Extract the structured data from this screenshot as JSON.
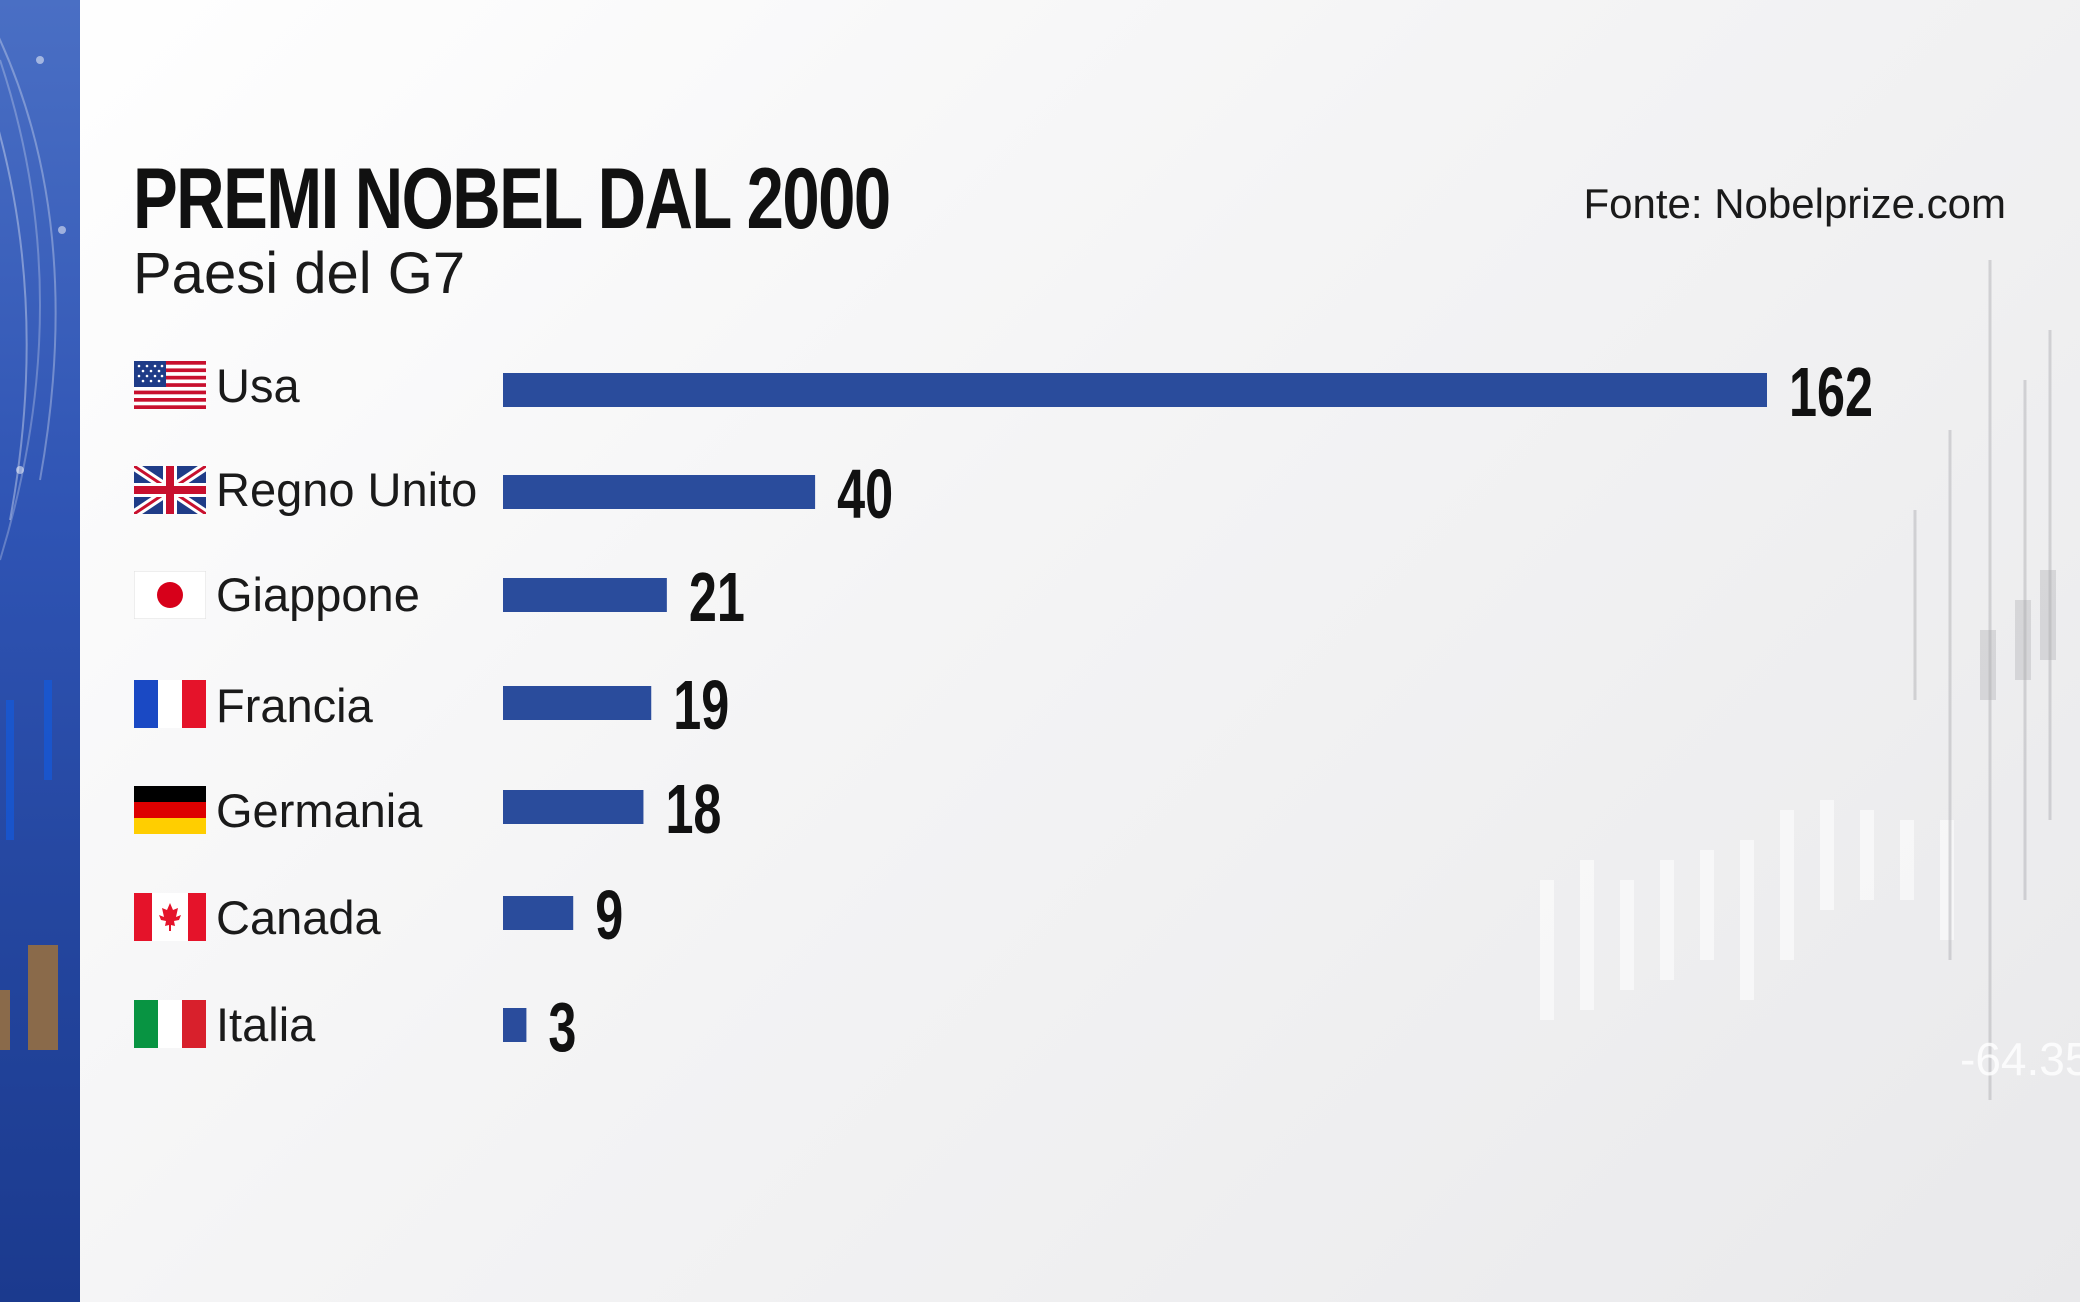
{
  "title": "PREMI NOBEL DAL 2000",
  "subtitle": "Paesi del G7",
  "source": "Fonte: Nobelprize.com",
  "colors": {
    "bar": "#2a4c9c",
    "band": "#2a4fa8",
    "text": "#111111"
  },
  "chart_data": {
    "type": "bar",
    "orientation": "horizontal",
    "title": "PREMI NOBEL DAL 2000",
    "subtitle": "Paesi del G7",
    "categories": [
      "Usa",
      "Regno Unito",
      "Giappone",
      "Francia",
      "Germania",
      "Canada",
      "Italia"
    ],
    "values": [
      162,
      40,
      21,
      19,
      18,
      9,
      3
    ],
    "flags": [
      "us-flag-icon",
      "uk-flag-icon",
      "japan-flag-icon",
      "france-flag-icon",
      "germany-flag-icon",
      "canada-flag-icon",
      "italy-flag-icon"
    ],
    "xlim": [
      0,
      162
    ],
    "grid": false,
    "legend": "none"
  }
}
